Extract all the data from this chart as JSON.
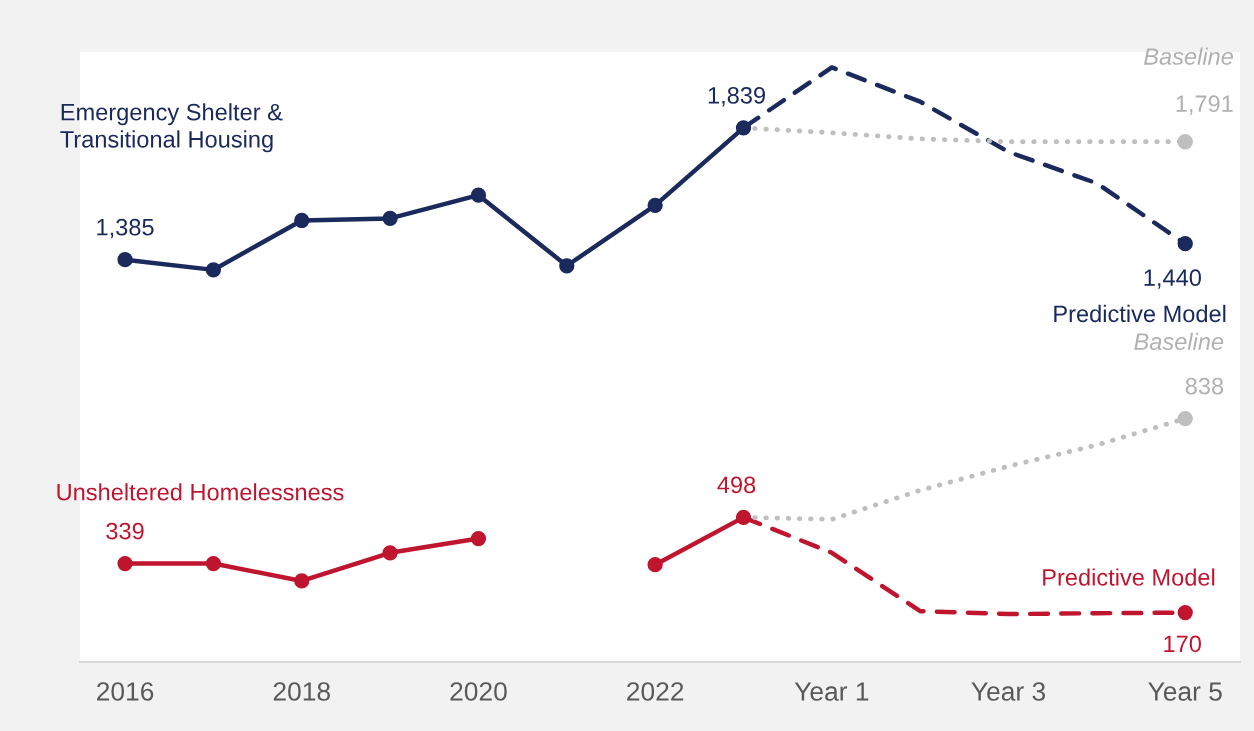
{
  "chart_data": {
    "type": "line",
    "categories": [
      "2016",
      null,
      "2018",
      null,
      "2020",
      null,
      "2022",
      null,
      "Year 1",
      null,
      "Year 3",
      null,
      "Year 5"
    ],
    "ylim": [
      0,
      2100
    ],
    "tick_labels": "x",
    "grid": false,
    "legend": false,
    "marker": "circle",
    "series": [
      {
        "name": "Emergency Shelter &\nTransitional Housing",
        "color": "#1b2a5c",
        "line_style": "solid",
        "values": [
          1385,
          1350,
          1520,
          1527,
          1607,
          1364,
          1572,
          1839,
          null,
          null,
          null,
          null,
          null
        ],
        "value_labels": [
          "1,385",
          null,
          null,
          null,
          null,
          null,
          null,
          "1,839",
          null,
          null,
          null,
          null,
          null
        ]
      },
      {
        "name": "Predictive Model",
        "color": "#1b2a5c",
        "line_style": "dashed",
        "marker": "none",
        "values": [
          null,
          null,
          null,
          null,
          null,
          null,
          null,
          1839,
          2047,
          1929,
          1756,
          1648,
          1440
        ],
        "value_labels": [
          null,
          null,
          null,
          null,
          null,
          null,
          null,
          null,
          null,
          null,
          null,
          null,
          "1,440"
        ]
      },
      {
        "name": "Baseline",
        "color": "#bfbfbf",
        "line_style": "dotted",
        "marker": "none",
        "values": [
          null,
          null,
          null,
          null,
          null,
          null,
          null,
          1839,
          1822,
          1801,
          1791,
          1791,
          1791
        ],
        "value_labels": [
          null,
          null,
          null,
          null,
          null,
          null,
          null,
          null,
          null,
          null,
          null,
          null,
          "1,791"
        ]
      },
      {
        "name": "Unsheltered Homelessness",
        "color": "#c0152f",
        "line_style": "solid",
        "values": [
          339,
          339,
          279,
          376,
          425,
          null,
          335,
          498,
          null,
          null,
          null,
          null,
          null
        ],
        "value_labels": [
          "339",
          null,
          null,
          null,
          null,
          null,
          null,
          "498",
          null,
          null,
          null,
          null,
          null
        ]
      },
      {
        "name": "Predictive Model",
        "color": "#c0152f",
        "line_style": "dashed",
        "marker": "none",
        "values": [
          null,
          null,
          null,
          null,
          null,
          null,
          null,
          498,
          376,
          175,
          165,
          168,
          170
        ],
        "value_labels": [
          null,
          null,
          null,
          null,
          null,
          null,
          null,
          null,
          null,
          null,
          null,
          null,
          "170"
        ]
      },
      {
        "name": "Baseline",
        "color": "#bfbfbf",
        "line_style": "dotted",
        "marker": "none",
        "values": [
          null,
          null,
          null,
          null,
          null,
          null,
          null,
          498,
          491,
          591,
          674,
          747,
          838
        ],
        "value_labels": [
          null,
          null,
          null,
          null,
          null,
          null,
          null,
          null,
          null,
          null,
          null,
          null,
          "838"
        ]
      }
    ]
  }
}
